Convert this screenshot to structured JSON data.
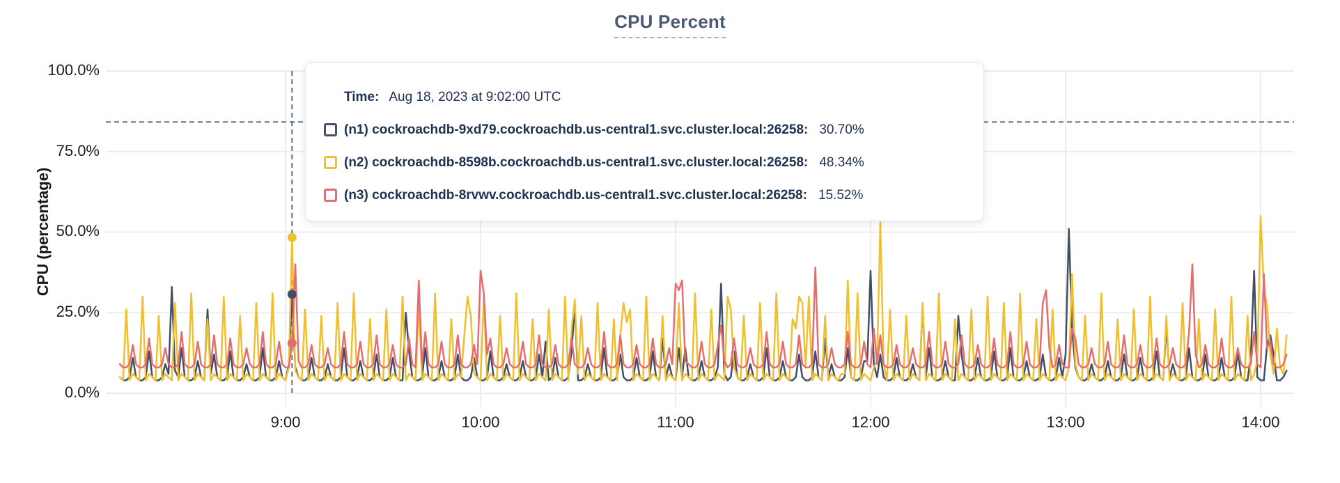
{
  "title": "CPU Percent",
  "axes": {
    "y_label": "CPU (percentage)",
    "y_ticks": [
      "100.0%",
      "75.0%",
      "50.0%",
      "25.0%",
      "0.0%"
    ],
    "x_ticks": [
      "9:00",
      "10:00",
      "11:00",
      "12:00",
      "13:00",
      "14:00"
    ]
  },
  "tooltip": {
    "time_label": "Time:",
    "time_value": "Aug 18, 2023 at 9:02:00 UTC",
    "series": [
      {
        "name": "(n1) cockroachdb-9xd79.cockroachdb.us-central1.svc.cluster.local:26258:",
        "value": "30.70%",
        "color": "#475168"
      },
      {
        "name": "(n2) cockroachdb-8598b.cockroachdb.us-central1.svc.cluster.local:26258:",
        "value": "48.34%",
        "color": "#f2c02e"
      },
      {
        "name": "(n3) cockroachdb-8rvwv.cockroachdb.us-central1.svc.cluster.local:26258:",
        "value": "15.52%",
        "color": "#e66d6d"
      }
    ]
  },
  "colors": {
    "grid": "#ececec",
    "crosshair": "#5d7487",
    "title": "#4a5a78",
    "tooltip_text": "#1d3150"
  },
  "chart_data": {
    "type": "line",
    "title": "CPU Percent",
    "xlabel": "",
    "ylabel": "CPU (percentage)",
    "ylim": [
      0,
      100
    ],
    "grid": true,
    "x_start_time": "8:09",
    "x_end_time": "14:08",
    "x_step_minutes": 1,
    "y_tick_values": [
      100,
      75,
      50,
      25,
      0
    ],
    "x_ticks": [
      {
        "label": "9:00",
        "index": 51
      },
      {
        "label": "10:00",
        "index": 111
      },
      {
        "label": "11:00",
        "index": 171
      },
      {
        "label": "12:00",
        "index": 231
      },
      {
        "label": "13:00",
        "index": 291
      },
      {
        "label": "14:00",
        "index": 351
      }
    ],
    "crosshair": {
      "time": "9:02:00 UTC",
      "index": 53,
      "horizontal_percent": 84.2,
      "markers": [
        {
          "series": "n1",
          "value": 30.7
        },
        {
          "series": "n2",
          "value": 48.34
        },
        {
          "series": "n3",
          "value": 15.52
        }
      ]
    },
    "series": [
      {
        "id": "n1",
        "name": "(n1) cockroachdb-9xd79.cockroachdb.us-central1.svc.cluster.local:26258",
        "color": "#414e68",
        "values": [
          5,
          4,
          4,
          5,
          11,
          5,
          4,
          4,
          5,
          13,
          5,
          4,
          4,
          5,
          9,
          6,
          33,
          7,
          5,
          14,
          5,
          4,
          4,
          5,
          10,
          5,
          4,
          26,
          6,
          12,
          5,
          4,
          4,
          5,
          13,
          5,
          4,
          4,
          5,
          9,
          5,
          4,
          4,
          5,
          14,
          5,
          4,
          4,
          5,
          10,
          5,
          4,
          9,
          30.7,
          8,
          5,
          4,
          4,
          5,
          11,
          5,
          4,
          4,
          5,
          9,
          5,
          4,
          4,
          5,
          14,
          5,
          4,
          4,
          5,
          10,
          5,
          4,
          4,
          5,
          12,
          5,
          4,
          4,
          5,
          11,
          5,
          4,
          4,
          25,
          13,
          5,
          4,
          4,
          5,
          14,
          5,
          4,
          4,
          5,
          10,
          5,
          4,
          4,
          5,
          12,
          5,
          4,
          4,
          5,
          11,
          5,
          4,
          4,
          5,
          13,
          5,
          4,
          4,
          5,
          9,
          5,
          4,
          4,
          5,
          10,
          5,
          4,
          4,
          5,
          12,
          5,
          16,
          4,
          5,
          11,
          5,
          4,
          4,
          5,
          13,
          27,
          4,
          4,
          5,
          9,
          5,
          4,
          4,
          5,
          14,
          5,
          4,
          4,
          5,
          12,
          5,
          4,
          4,
          5,
          11,
          5,
          4,
          4,
          5,
          13,
          5,
          4,
          17,
          5,
          9,
          5,
          4,
          14,
          5,
          14,
          5,
          4,
          4,
          5,
          10,
          5,
          4,
          4,
          5,
          8,
          34,
          6,
          4,
          5,
          13,
          5,
          4,
          4,
          5,
          9,
          5,
          4,
          4,
          5,
          14,
          5,
          4,
          4,
          5,
          10,
          5,
          4,
          4,
          5,
          12,
          5,
          4,
          4,
          5,
          13,
          5,
          4,
          17,
          5,
          9,
          5,
          4,
          4,
          5,
          14,
          5,
          4,
          4,
          5,
          10,
          10,
          38,
          9,
          5,
          12,
          5,
          4,
          4,
          5,
          11,
          5,
          4,
          4,
          5,
          9,
          5,
          4,
          27,
          5,
          14,
          5,
          4,
          4,
          5,
          10,
          5,
          4,
          4,
          24,
          12,
          5,
          4,
          4,
          5,
          11,
          5,
          4,
          4,
          5,
          13,
          5,
          4,
          4,
          5,
          14,
          5,
          4,
          4,
          5,
          10,
          5,
          4,
          4,
          5,
          12,
          5,
          4,
          4,
          5,
          11,
          5,
          12,
          51,
          20,
          8,
          5,
          4,
          4,
          5,
          9,
          5,
          4,
          4,
          5,
          10,
          5,
          4,
          4,
          5,
          12,
          5,
          4,
          4,
          5,
          11,
          5,
          4,
          4,
          5,
          13,
          5,
          4,
          21,
          5,
          9,
          5,
          4,
          4,
          5,
          14,
          5,
          4,
          4,
          5,
          12,
          5,
          4,
          4,
          5,
          11,
          5,
          4,
          4,
          5,
          13,
          5,
          4,
          4,
          12,
          38,
          5,
          4,
          4,
          15,
          18,
          12,
          4,
          4,
          5,
          7
        ]
      },
      {
        "id": "n2",
        "name": "(n2) cockroachdb-8598b.cockroachdb.us-central1.svc.cluster.local:26258",
        "color": "#f0bf2e",
        "values": [
          5,
          4,
          26,
          4,
          6,
          5,
          4,
          30,
          4,
          6,
          5,
          4,
          24,
          4,
          6,
          5,
          4,
          28,
          4,
          6,
          5,
          4,
          31,
          4,
          6,
          5,
          4,
          23,
          4,
          6,
          5,
          4,
          30,
          4,
          6,
          5,
          4,
          24,
          4,
          6,
          5,
          4,
          28,
          4,
          6,
          5,
          4,
          31,
          4,
          6,
          5,
          4,
          8,
          48.3,
          7,
          5,
          4,
          26,
          4,
          6,
          5,
          4,
          24,
          4,
          6,
          5,
          4,
          28,
          4,
          6,
          5,
          4,
          31,
          4,
          6,
          5,
          4,
          23,
          4,
          6,
          5,
          4,
          26,
          4,
          6,
          5,
          4,
          30,
          4,
          6,
          5,
          4,
          28,
          4,
          6,
          5,
          4,
          31,
          4,
          6,
          5,
          4,
          23,
          4,
          6,
          5,
          18,
          30,
          24,
          6,
          5,
          4,
          30,
          4,
          6,
          5,
          4,
          24,
          4,
          6,
          5,
          4,
          31,
          4,
          6,
          5,
          4,
          23,
          4,
          6,
          5,
          4,
          26,
          4,
          6,
          5,
          4,
          30,
          4,
          20,
          29,
          6,
          24,
          4,
          6,
          5,
          4,
          28,
          4,
          6,
          5,
          4,
          23,
          4,
          18,
          28,
          22,
          26,
          4,
          6,
          5,
          4,
          30,
          4,
          6,
          5,
          4,
          24,
          4,
          6,
          5,
          4,
          28,
          4,
          6,
          5,
          4,
          31,
          4,
          6,
          5,
          4,
          26,
          4,
          6,
          5,
          4,
          30,
          26,
          8,
          5,
          4,
          24,
          4,
          6,
          5,
          4,
          28,
          4,
          6,
          5,
          4,
          31,
          4,
          6,
          5,
          4,
          23,
          20,
          30,
          28,
          8,
          30,
          4,
          6,
          5,
          4,
          24,
          4,
          6,
          5,
          4,
          6,
          6,
          35,
          5,
          4,
          31,
          4,
          6,
          5,
          4,
          8,
          10,
          53,
          9,
          4,
          26,
          4,
          6,
          5,
          4,
          24,
          4,
          6,
          5,
          4,
          28,
          4,
          6,
          5,
          4,
          31,
          4,
          6,
          5,
          4,
          23,
          4,
          6,
          5,
          4,
          26,
          4,
          6,
          5,
          4,
          30,
          4,
          6,
          5,
          4,
          28,
          4,
          6,
          5,
          4,
          31,
          4,
          6,
          5,
          4,
          23,
          4,
          6,
          5,
          4,
          26,
          4,
          6,
          5,
          4,
          8,
          37,
          9,
          5,
          4,
          24,
          4,
          6,
          5,
          4,
          31,
          4,
          6,
          5,
          4,
          23,
          4,
          6,
          5,
          4,
          26,
          4,
          6,
          5,
          4,
          30,
          4,
          6,
          5,
          4,
          24,
          4,
          6,
          5,
          4,
          28,
          4,
          6,
          5,
          4,
          23,
          4,
          6,
          5,
          4,
          26,
          4,
          6,
          5,
          4,
          30,
          4,
          6,
          5,
          4,
          24,
          4,
          6,
          10,
          55,
          33,
          27,
          12,
          6,
          20,
          8,
          6,
          18
        ]
      },
      {
        "id": "n3",
        "name": "(n3) cockroachdb-8rvwv.cockroachdb.us-central1.svc.cluster.local:26258",
        "color": "#e66d6d",
        "values": [
          9,
          8,
          8,
          9,
          15,
          9,
          8,
          8,
          9,
          17,
          9,
          8,
          8,
          9,
          14,
          9,
          8,
          8,
          9,
          19,
          9,
          8,
          8,
          9,
          16,
          9,
          8,
          8,
          9,
          18,
          9,
          8,
          8,
          9,
          17,
          9,
          8,
          8,
          9,
          14,
          9,
          8,
          8,
          9,
          19,
          9,
          8,
          8,
          9,
          16,
          9,
          8,
          8,
          15.5,
          40,
          10,
          8,
          8,
          9,
          15,
          9,
          8,
          8,
          9,
          14,
          9,
          8,
          8,
          9,
          19,
          9,
          8,
          8,
          9,
          16,
          9,
          8,
          8,
          9,
          18,
          9,
          8,
          8,
          9,
          15,
          9,
          8,
          8,
          9,
          17,
          9,
          8,
          35,
          9,
          19,
          9,
          8,
          8,
          9,
          16,
          9,
          8,
          8,
          9,
          18,
          9,
          8,
          8,
          9,
          15,
          9,
          38,
          31,
          12,
          17,
          9,
          8,
          8,
          9,
          14,
          9,
          8,
          8,
          9,
          16,
          9,
          8,
          8,
          9,
          18,
          9,
          8,
          8,
          9,
          15,
          9,
          8,
          8,
          9,
          17,
          9,
          8,
          8,
          9,
          14,
          9,
          8,
          8,
          9,
          19,
          9,
          8,
          8,
          9,
          18,
          9,
          8,
          8,
          9,
          15,
          9,
          8,
          8,
          9,
          17,
          9,
          8,
          8,
          9,
          14,
          9,
          34,
          32,
          35,
          10,
          9,
          8,
          8,
          9,
          16,
          9,
          8,
          8,
          9,
          15,
          21,
          10,
          8,
          9,
          17,
          9,
          8,
          8,
          9,
          14,
          9,
          8,
          8,
          9,
          19,
          9,
          8,
          8,
          9,
          16,
          9,
          8,
          8,
          9,
          18,
          9,
          8,
          8,
          9,
          39,
          9,
          8,
          8,
          9,
          14,
          9,
          8,
          8,
          9,
          19,
          9,
          8,
          8,
          9,
          16,
          9,
          8,
          20,
          9,
          18,
          9,
          8,
          8,
          9,
          15,
          9,
          8,
          8,
          9,
          14,
          9,
          8,
          8,
          9,
          19,
          9,
          8,
          8,
          9,
          16,
          9,
          8,
          8,
          9,
          18,
          9,
          8,
          8,
          9,
          15,
          9,
          8,
          8,
          9,
          17,
          9,
          8,
          8,
          9,
          19,
          9,
          8,
          8,
          9,
          16,
          9,
          8,
          8,
          9,
          28,
          32,
          14,
          8,
          9,
          15,
          9,
          8,
          8,
          20,
          17,
          9,
          8,
          8,
          9,
          14,
          9,
          8,
          8,
          9,
          16,
          9,
          8,
          8,
          9,
          18,
          9,
          8,
          8,
          9,
          15,
          9,
          8,
          8,
          9,
          17,
          9,
          8,
          8,
          9,
          14,
          9,
          8,
          8,
          9,
          19,
          40,
          12,
          8,
          9,
          15,
          9,
          8,
          8,
          9,
          17,
          9,
          8,
          8,
          9,
          14,
          9,
          8,
          8,
          9,
          19,
          9,
          8,
          37,
          14,
          16,
          9,
          8,
          8,
          9,
          12
        ]
      }
    ]
  }
}
